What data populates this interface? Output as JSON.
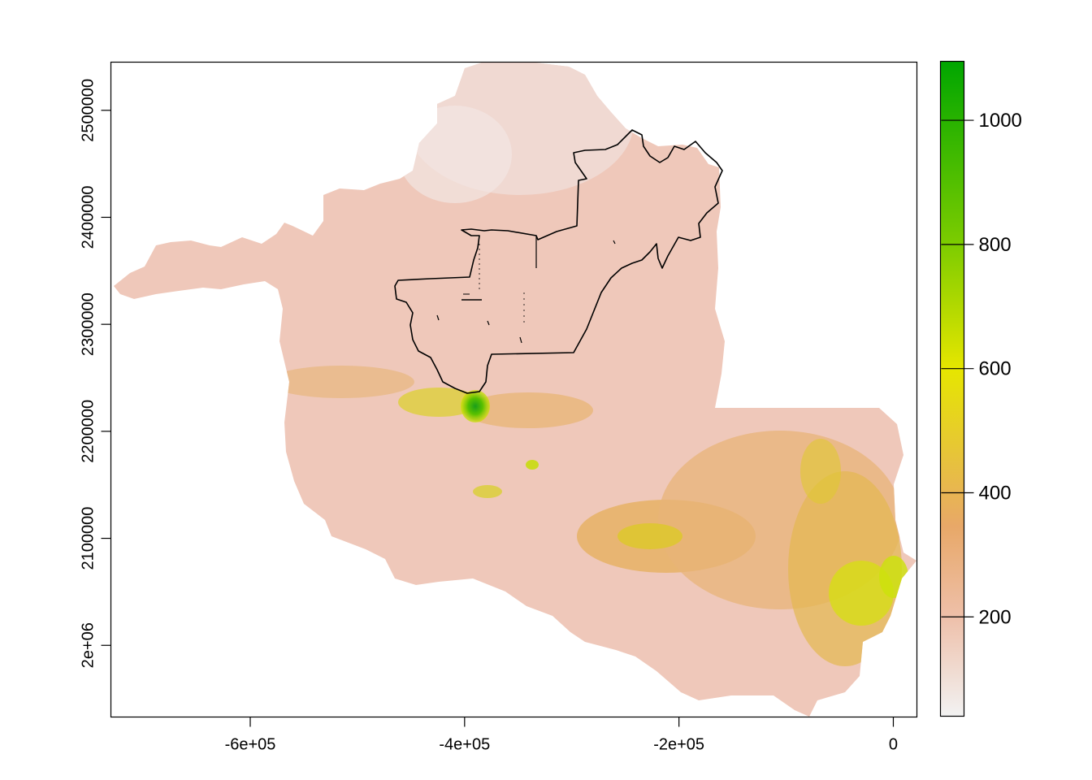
{
  "chart_data": {
    "type": "heatmap",
    "title": "",
    "xlabel": "",
    "ylabel": "",
    "xlim": [
      -730000,
      22000
    ],
    "ylim": [
      1933000,
      2545000
    ],
    "x_ticks": [
      {
        "value": -600000,
        "label": "-6e+05"
      },
      {
        "value": -400000,
        "label": "-4e+05"
      },
      {
        "value": -200000,
        "label": "-2e+05"
      },
      {
        "value": 0,
        "label": "0"
      }
    ],
    "y_ticks": [
      {
        "value": 2000000,
        "label": "2e+06"
      },
      {
        "value": 2100000,
        "label": "2100000"
      },
      {
        "value": 2200000,
        "label": "2200000"
      },
      {
        "value": 2300000,
        "label": "2300000"
      },
      {
        "value": 2400000,
        "label": "2400000"
      },
      {
        "value": 2500000,
        "label": "2500000"
      }
    ],
    "legend": {
      "placement": "right",
      "range": [
        40,
        1095
      ],
      "ticks": [
        {
          "value": 200,
          "label": "200"
        },
        {
          "value": 400,
          "label": "400"
        },
        {
          "value": 600,
          "label": "600"
        },
        {
          "value": 800,
          "label": "800"
        },
        {
          "value": 1000,
          "label": "1000"
        }
      ],
      "color_stops": [
        {
          "value": 40,
          "color": "#f2f2f2"
        },
        {
          "value": 200,
          "color": "#eec0aa"
        },
        {
          "value": 350,
          "color": "#e8a868"
        },
        {
          "value": 600,
          "color": "#e6e600"
        },
        {
          "value": 800,
          "color": "#7dcc00"
        },
        {
          "value": 1095,
          "color": "#00a600"
        }
      ]
    }
  }
}
